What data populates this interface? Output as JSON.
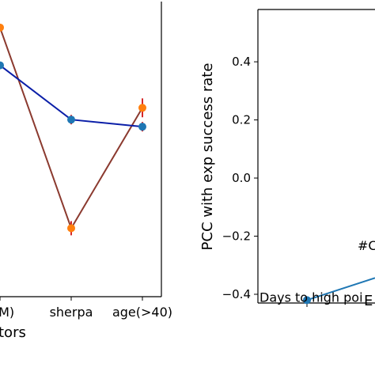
{
  "colors": {
    "blue_series": "#0b1fa8",
    "red_series": "#8b3a2f",
    "marker_orange": "#ff7f0e",
    "marker_blue": "#1f77b4",
    "errorbar": "#d62728",
    "teal_line": "#1f77b4"
  },
  "chart_data": [
    {
      "type": "line",
      "panel": "left",
      "categories": [
        "(M)",
        "sherpa",
        "age(>40)"
      ],
      "x_tick_labels": [
        "(M)",
        "sherpa",
        "age(>40)"
      ],
      "xlabel": "tors",
      "series": [
        {
          "values": [
            0.49,
            -0.36,
            0.15
          ],
          "errors": [
            0.0,
            0.03,
            0.04
          ]
        },
        {
          "values": [
            0.33,
            0.1,
            0.07
          ],
          "errors": [
            0.0,
            0.02,
            0.02
          ]
        }
      ],
      "ylim": [
        -0.65,
        0.6
      ]
    },
    {
      "type": "line",
      "panel": "right",
      "ylabel": "PCC with exp success rate",
      "xlabel": "E",
      "y_ticks": [
        "0.4",
        "0.2",
        "0.0",
        "−0.2",
        "−0.4"
      ],
      "ylim": [
        -0.43,
        0.58
      ],
      "points": [
        {
          "label": "Days to high poi",
          "y": -0.42
        }
      ],
      "annotations": [
        "#C"
      ]
    }
  ]
}
